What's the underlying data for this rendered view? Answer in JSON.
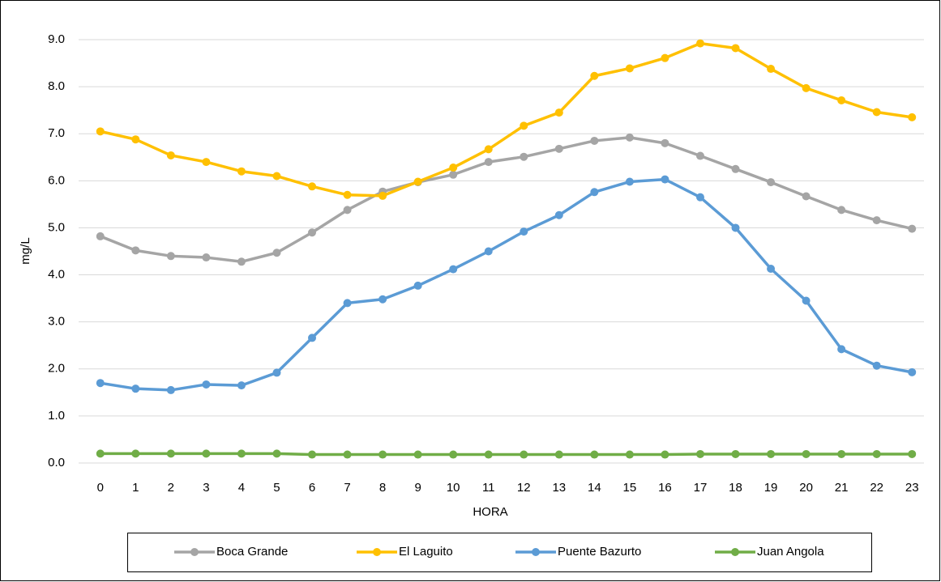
{
  "chart_data": {
    "type": "line",
    "x_label": "HORA",
    "y_label": "mg/L",
    "categories": [
      "0",
      "1",
      "2",
      "3",
      "4",
      "5",
      "6",
      "7",
      "8",
      "9",
      "10",
      "11",
      "12",
      "13",
      "14",
      "15",
      "16",
      "17",
      "18",
      "19",
      "20",
      "21",
      "22",
      "23"
    ],
    "series": [
      {
        "name": "Boca Grande",
        "color": "#a5a5a5",
        "values": [
          4.82,
          4.52,
          4.4,
          4.37,
          4.28,
          4.47,
          4.9,
          5.38,
          5.77,
          5.97,
          6.13,
          6.4,
          6.51,
          6.68,
          6.85,
          6.92,
          6.8,
          6.53,
          6.25,
          5.97,
          5.67,
          5.38,
          5.16,
          4.98
        ]
      },
      {
        "name": "El Laguito",
        "color": "#ffc000",
        "values": [
          7.05,
          6.88,
          6.54,
          6.4,
          6.2,
          6.1,
          5.88,
          5.7,
          5.68,
          5.98,
          6.28,
          6.67,
          7.17,
          7.45,
          8.23,
          8.39,
          8.61,
          8.92,
          8.82,
          8.38,
          7.97,
          7.71,
          7.46,
          7.35
        ]
      },
      {
        "name": "Puente Bazurto",
        "color": "#5b9bd5",
        "values": [
          1.7,
          1.58,
          1.55,
          1.67,
          1.65,
          1.92,
          2.66,
          3.4,
          3.48,
          3.77,
          4.12,
          4.5,
          4.92,
          5.27,
          5.76,
          5.98,
          6.03,
          5.65,
          5.0,
          4.13,
          3.45,
          2.42,
          2.07,
          1.93
        ]
      },
      {
        "name": "Juan Angola",
        "color": "#70ad47",
        "values": [
          0.2,
          0.2,
          0.2,
          0.2,
          0.2,
          0.2,
          0.18,
          0.18,
          0.18,
          0.18,
          0.18,
          0.18,
          0.18,
          0.18,
          0.18,
          0.18,
          0.18,
          0.19,
          0.19,
          0.19,
          0.19,
          0.19,
          0.19,
          0.19
        ]
      }
    ],
    "ylim": [
      0,
      9
    ],
    "yticks": [
      {
        "value": 0,
        "label": "0.0"
      },
      {
        "value": 1,
        "label": "1.0"
      },
      {
        "value": 2,
        "label": "2.0"
      },
      {
        "value": 3,
        "label": "3.0"
      },
      {
        "value": 4,
        "label": "4.0"
      },
      {
        "value": 5,
        "label": "5.0"
      },
      {
        "value": 6,
        "label": "6.0"
      },
      {
        "value": 7,
        "label": "7.0"
      },
      {
        "value": 8,
        "label": "8.0"
      },
      {
        "value": 9,
        "label": "9.0"
      }
    ],
    "grid": true,
    "legend": "bottom"
  }
}
